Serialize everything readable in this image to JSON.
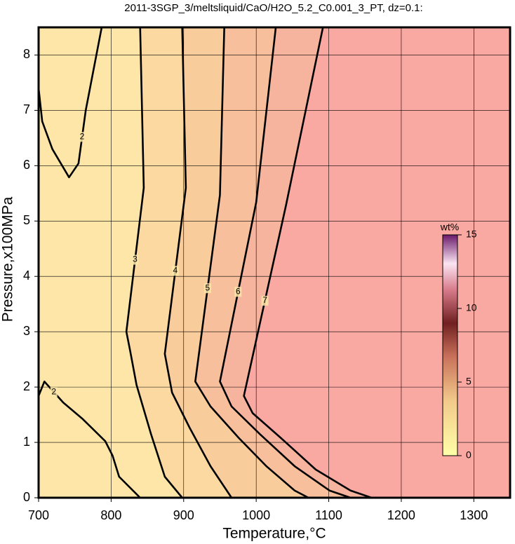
{
  "chart_data": {
    "type": "contour",
    "title": "2011-3SGP_3/meltsliquid/CaO/H2O_5.2_C0.001_3_PT, dz=0.1:",
    "x_label": "Temperature,°C",
    "y_label": "Pressure,x100MPa",
    "xlim": [
      700,
      1350
    ],
    "xticks": [
      700,
      800,
      900,
      1000,
      1100,
      1200,
      1300
    ],
    "ylim": [
      0,
      8.5
    ],
    "yticks": [
      0,
      1,
      2,
      3,
      4,
      5,
      6,
      7,
      8
    ],
    "grid": true,
    "series": [
      {
        "level": 2,
        "x": [
          787,
          765,
          755,
          742,
          719,
          705,
          700
        ],
        "y": [
          8.5,
          7.0,
          6.04,
          5.79,
          6.3,
          6.8,
          7.4
        ]
      },
      {
        "level": 2,
        "x": [
          700,
          708,
          734,
          761,
          792,
          802,
          811,
          840
        ],
        "y": [
          1.84,
          2.1,
          1.72,
          1.42,
          1.02,
          0.76,
          0.38,
          0
        ]
      },
      {
        "level": 3,
        "color": "#fbd9a0",
        "x": [
          840,
          845,
          821,
          826,
          835,
          855,
          874,
          898
        ],
        "y": [
          8.5,
          5.6,
          3.0,
          2.67,
          2.04,
          1.15,
          0.38,
          0
        ]
      },
      {
        "level": 4,
        "color": "#f9cc9b",
        "x": [
          898,
          903,
          874,
          884,
          908,
          937,
          966
        ],
        "y": [
          8.5,
          5.6,
          2.6,
          1.9,
          1.27,
          0.57,
          0
        ]
      },
      {
        "level": 5,
        "color": "#f7bf9b",
        "x": [
          956,
          950,
          916,
          937,
          976,
          1014,
          1053,
          1072
        ],
        "y": [
          8.5,
          5.47,
          2.1,
          1.65,
          1.08,
          0.57,
          0.13,
          0
        ]
      },
      {
        "level": 6,
        "color": "#f6b39d",
        "x": [
          1027,
          1000,
          950,
          966,
          1005,
          1053,
          1101,
          1130
        ],
        "y": [
          8.5,
          5.34,
          2.1,
          1.65,
          1.15,
          0.57,
          0.13,
          0
        ]
      },
      {
        "level": 7,
        "color": "#f9a8a2",
        "x": [
          1092,
          1041,
          983,
          995,
          1034,
          1082,
          1130,
          1159
        ],
        "y": [
          8.5,
          5.28,
          1.84,
          1.53,
          1.08,
          0.51,
          0.13,
          0
        ]
      }
    ],
    "colorbar": {
      "label": "wt%",
      "lim": [
        0,
        15
      ],
      "ticks": [
        0,
        5,
        10,
        15
      ]
    }
  }
}
